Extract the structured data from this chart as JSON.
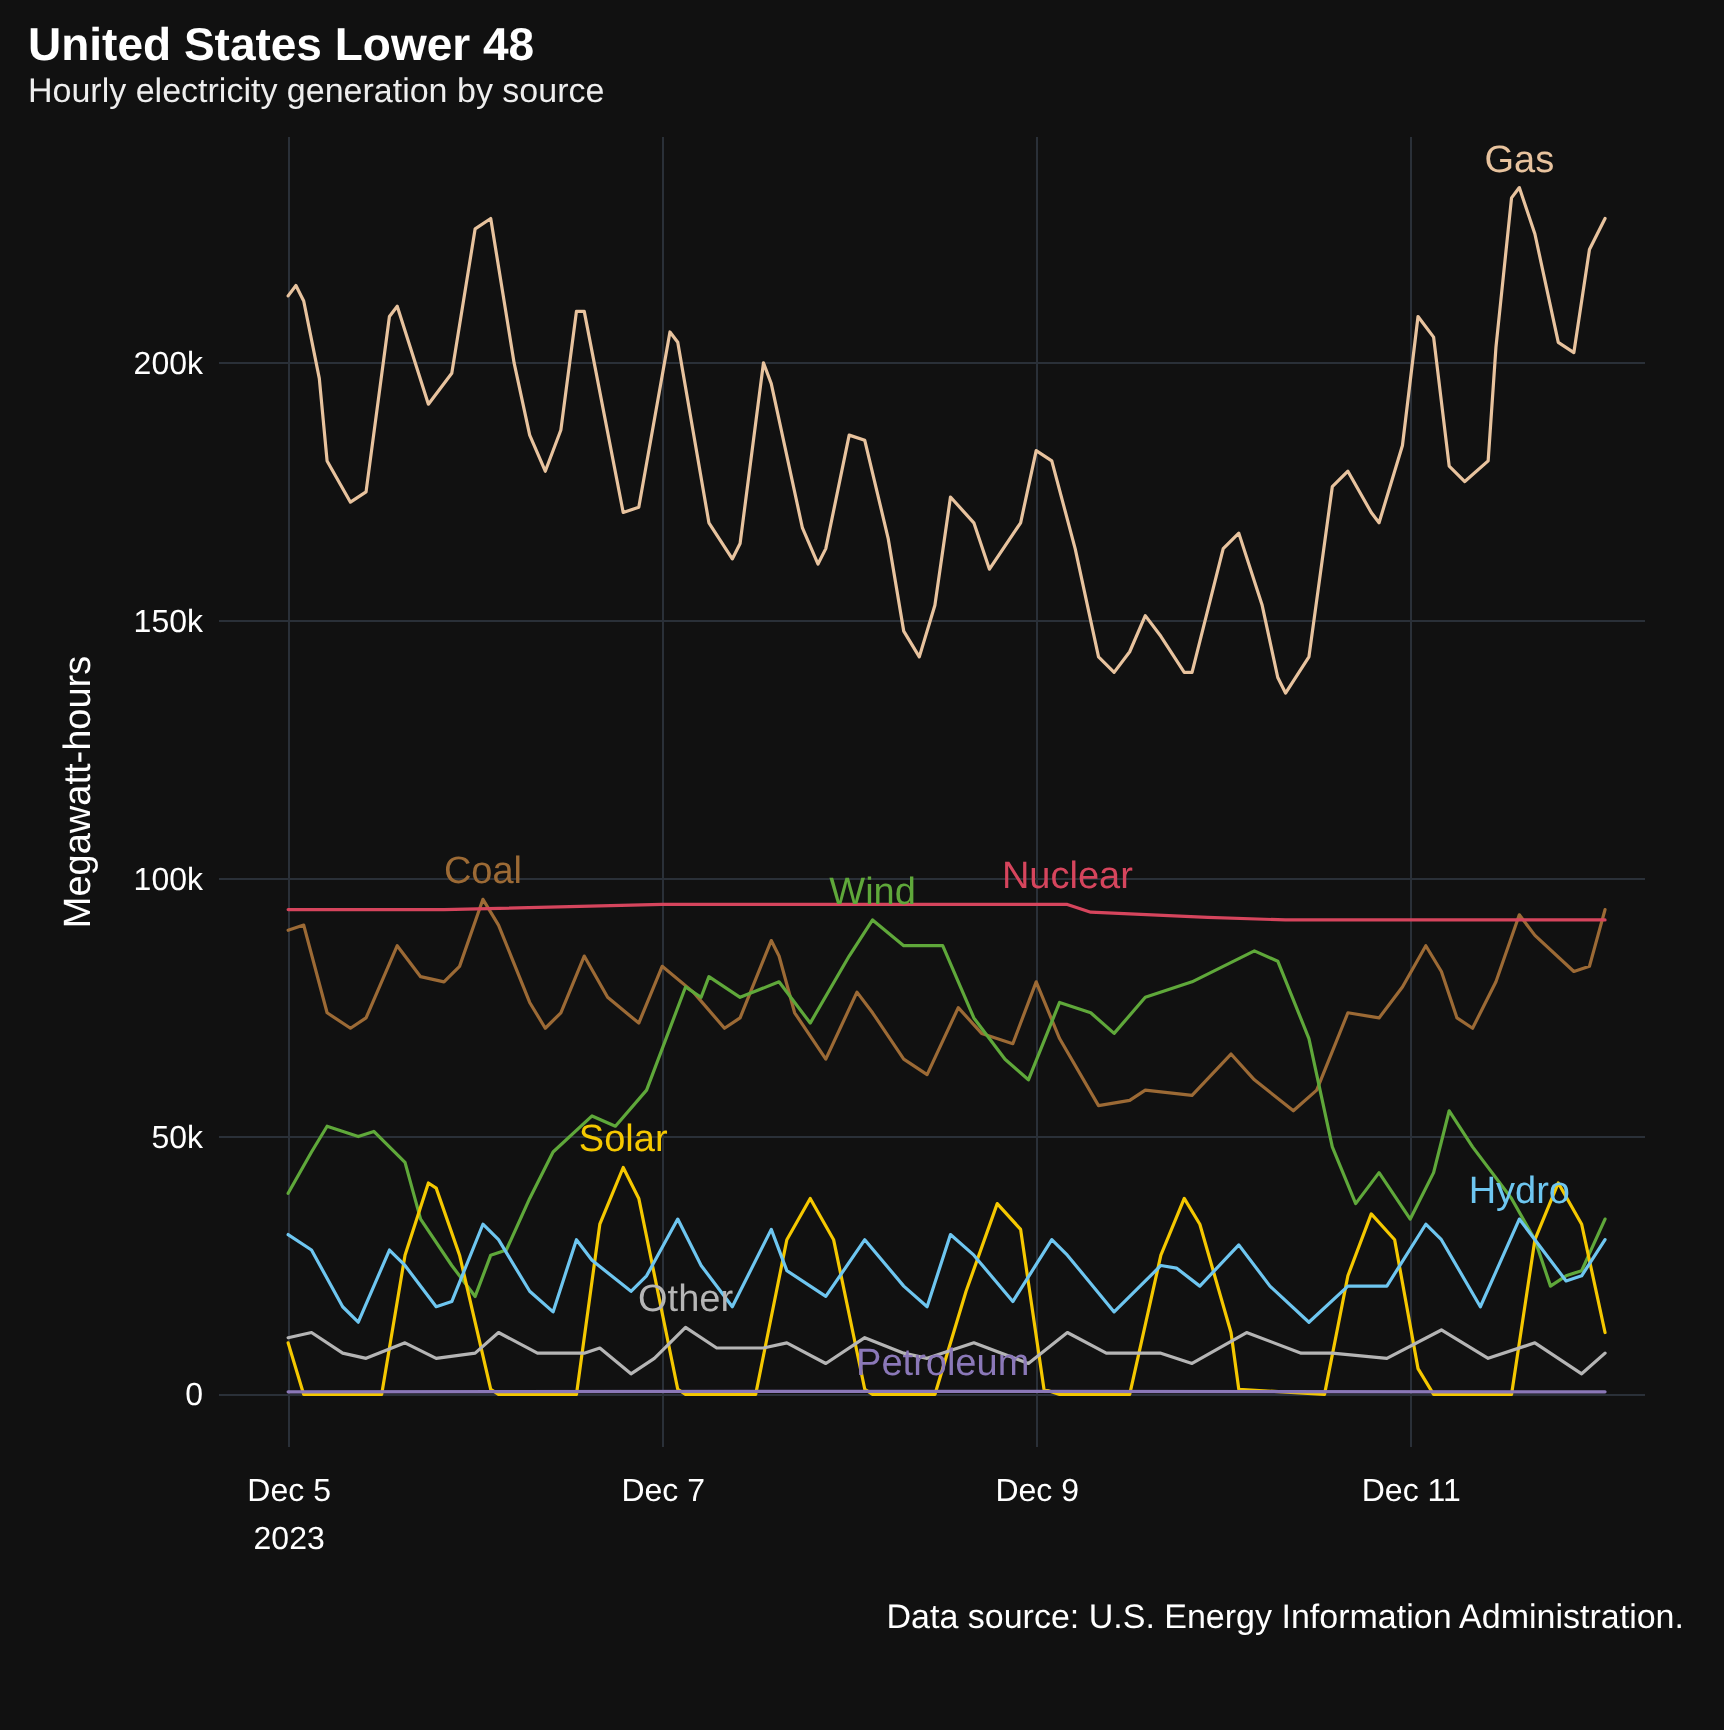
{
  "chart_data": {
    "type": "line",
    "title": "United States Lower 48",
    "subtitle": "Hourly electricity generation by source",
    "ylabel": "Megawatt-hours",
    "annotations": [
      "Data source: U.S. Energy Information Administration."
    ],
    "xlim": [
      "2023-12-04T15:00",
      "2023-12-12T06:00"
    ],
    "xticks": [
      {
        "value": "2023-12-05",
        "label": "Dec 5\n2023"
      },
      {
        "value": "2023-12-07",
        "label": "Dec 7"
      },
      {
        "value": "2023-12-09",
        "label": "Dec 9"
      },
      {
        "value": "2023-12-11",
        "label": "Dec 11"
      }
    ],
    "ylim": [
      -10000,
      244000
    ],
    "yticks": [
      0,
      {
        "value": 50000,
        "label": "50k"
      },
      {
        "value": 100000,
        "label": "100k"
      },
      {
        "value": 150000,
        "label": "150k"
      },
      {
        "value": 200000,
        "label": "200k"
      }
    ],
    "grid": true,
    "series": [
      {
        "name": "Gas",
        "color": "#e8c39e",
        "x": [
          "2023-12-05T00:00",
          "2023-12-05T01:00",
          "2023-12-05T02:00",
          "2023-12-05T04:00",
          "2023-12-05T05:00",
          "2023-12-05T08:00",
          "2023-12-05T10:00",
          "2023-12-05T13:00",
          "2023-12-05T14:00",
          "2023-12-05T18:00",
          "2023-12-05T21:00",
          "2023-12-06T00:00",
          "2023-12-06T02:00",
          "2023-12-06T05:00",
          "2023-12-06T07:00",
          "2023-12-06T09:00",
          "2023-12-06T11:00",
          "2023-12-06T13:00",
          "2023-12-06T14:00",
          "2023-12-06T19:00",
          "2023-12-06T21:00",
          "2023-12-07T01:00",
          "2023-12-07T02:00",
          "2023-12-07T06:00",
          "2023-12-07T09:00",
          "2023-12-07T10:00",
          "2023-12-07T13:00",
          "2023-12-07T14:00",
          "2023-12-07T18:00",
          "2023-12-07T20:00",
          "2023-12-07T21:00",
          "2023-12-08T00:00",
          "2023-12-08T02:00",
          "2023-12-08T05:00",
          "2023-12-08T07:00",
          "2023-12-08T09:00",
          "2023-12-08T11:00",
          "2023-12-08T13:00",
          "2023-12-08T16:00",
          "2023-12-08T18:00",
          "2023-12-08T22:00",
          "2023-12-09T00:00",
          "2023-12-09T02:00",
          "2023-12-09T05:00",
          "2023-12-09T08:00",
          "2023-12-09T10:00",
          "2023-12-09T12:00",
          "2023-12-09T14:00",
          "2023-12-09T16:00",
          "2023-12-09T19:00",
          "2023-12-09T20:00",
          "2023-12-10T00:00",
          "2023-12-10T02:00",
          "2023-12-10T05:00",
          "2023-12-10T07:00",
          "2023-12-10T08:00",
          "2023-12-10T11:00",
          "2023-12-10T14:00",
          "2023-12-10T16:00",
          "2023-12-10T19:00",
          "2023-12-10T20:00",
          "2023-12-10T23:00",
          "2023-12-11T01:00",
          "2023-12-11T03:00",
          "2023-12-11T05:00",
          "2023-12-11T07:00",
          "2023-12-11T10:00",
          "2023-12-11T11:00",
          "2023-12-11T13:00",
          "2023-12-11T14:00",
          "2023-12-11T16:00",
          "2023-12-11T19:00",
          "2023-12-11T21:00",
          "2023-12-11T23:00",
          "2023-12-12T01:00"
        ],
        "values": [
          213000,
          215000,
          212000,
          197000,
          181000,
          173000,
          175000,
          209000,
          211000,
          192000,
          198000,
          226000,
          228000,
          200000,
          186000,
          179000,
          187000,
          210000,
          210000,
          171000,
          172000,
          206000,
          204000,
          169000,
          162000,
          165000,
          200000,
          196000,
          168000,
          161000,
          164000,
          186000,
          185000,
          166000,
          148000,
          143000,
          153000,
          174000,
          169000,
          160000,
          169000,
          183000,
          181000,
          164000,
          143000,
          140000,
          144000,
          151000,
          147000,
          140000,
          140000,
          164000,
          167000,
          153000,
          139000,
          136000,
          143000,
          176000,
          179000,
          171000,
          169000,
          184000,
          209000,
          205000,
          180000,
          177000,
          181000,
          203000,
          232000,
          234000,
          225000,
          204000,
          202000,
          222000,
          228000
        ]
      },
      {
        "name": "Coal",
        "color": "#9c6a35",
        "x": [
          "2023-12-05T00:00",
          "2023-12-05T02:00",
          "2023-12-05T05:00",
          "2023-12-05T08:00",
          "2023-12-05T10:00",
          "2023-12-05T14:00",
          "2023-12-05T17:00",
          "2023-12-05T20:00",
          "2023-12-05T22:00",
          "2023-12-06T01:00",
          "2023-12-06T03:00",
          "2023-12-06T07:00",
          "2023-12-06T09:00",
          "2023-12-06T11:00",
          "2023-12-06T14:00",
          "2023-12-06T17:00",
          "2023-12-06T21:00",
          "2023-12-07T00:00",
          "2023-12-07T04:00",
          "2023-12-07T08:00",
          "2023-12-07T10:00",
          "2023-12-07T14:00",
          "2023-12-07T15:00",
          "2023-12-07T17:00",
          "2023-12-07T21:00",
          "2023-12-08T01:00",
          "2023-12-08T03:00",
          "2023-12-08T07:00",
          "2023-12-08T10:00",
          "2023-12-08T14:00",
          "2023-12-08T17:00",
          "2023-12-08T21:00",
          "2023-12-09T00:00",
          "2023-12-09T03:00",
          "2023-12-09T08:00",
          "2023-12-09T12:00",
          "2023-12-09T14:00",
          "2023-12-09T20:00",
          "2023-12-10T01:00",
          "2023-12-10T04:00",
          "2023-12-10T09:00",
          "2023-12-10T12:00",
          "2023-12-10T16:00",
          "2023-12-10T20:00",
          "2023-12-10T23:00",
          "2023-12-11T02:00",
          "2023-12-11T04:00",
          "2023-12-11T06:00",
          "2023-12-11T08:00",
          "2023-12-11T11:00",
          "2023-12-11T14:00",
          "2023-12-11T16:00",
          "2023-12-11T21:00",
          "2023-12-11T23:00",
          "2023-12-12T01:00"
        ],
        "values": [
          90000,
          91000,
          74000,
          71000,
          73000,
          87000,
          81000,
          80000,
          83000,
          96000,
          91000,
          76000,
          71000,
          74000,
          85000,
          77000,
          72000,
          83000,
          78000,
          71000,
          73000,
          88000,
          85000,
          74000,
          65000,
          78000,
          74000,
          65000,
          62000,
          75000,
          70000,
          68000,
          80000,
          69000,
          56000,
          57000,
          59000,
          58000,
          66000,
          61000,
          55000,
          59000,
          74000,
          73000,
          79000,
          87000,
          82000,
          73000,
          71000,
          80000,
          93000,
          89000,
          82000,
          83000,
          94000
        ]
      },
      {
        "name": "Nuclear",
        "color": "#d6455d",
        "x": [
          "2023-12-05T00:00",
          "2023-12-05T20:00",
          "2023-12-07T00:00",
          "2023-12-08T08:00",
          "2023-12-09T04:00",
          "2023-12-09T07:00",
          "2023-12-09T22:00",
          "2023-12-10T08:00",
          "2023-12-12T01:00"
        ],
        "values": [
          94000,
          94000,
          95000,
          95000,
          95000,
          93500,
          92500,
          92000,
          92000
        ]
      },
      {
        "name": "Wind",
        "color": "#5fa83a",
        "x": [
          "2023-12-05T00:00",
          "2023-12-05T03:00",
          "2023-12-05T05:00",
          "2023-12-05T09:00",
          "2023-12-05T11:00",
          "2023-12-05T15:00",
          "2023-12-05T17:00",
          "2023-12-05T21:00",
          "2023-12-06T00:00",
          "2023-12-06T02:00",
          "2023-12-06T04:00",
          "2023-12-06T07:00",
          "2023-12-06T10:00",
          "2023-12-06T15:00",
          "2023-12-06T18:00",
          "2023-12-06T22:00",
          "2023-12-07T03:00",
          "2023-12-07T05:00",
          "2023-12-07T06:00",
          "2023-12-07T10:00",
          "2023-12-07T15:00",
          "2023-12-07T19:00",
          "2023-12-08T00:00",
          "2023-12-08T03:00",
          "2023-12-08T07:00",
          "2023-12-08T12:00",
          "2023-12-08T16:00",
          "2023-12-08T20:00",
          "2023-12-08T23:00",
          "2023-12-09T03:00",
          "2023-12-09T07:00",
          "2023-12-09T10:00",
          "2023-12-09T14:00",
          "2023-12-09T20:00",
          "2023-12-10T00:00",
          "2023-12-10T04:00",
          "2023-12-10T07:00",
          "2023-12-10T11:00",
          "2023-12-10T14:00",
          "2023-12-10T17:00",
          "2023-12-10T20:00",
          "2023-12-11T00:00",
          "2023-12-11T03:00",
          "2023-12-11T05:00",
          "2023-12-11T08:00",
          "2023-12-11T13:00",
          "2023-12-11T16:00",
          "2023-12-11T18:00",
          "2023-12-11T20:00",
          "2023-12-11T22:00",
          "2023-12-12T01:00"
        ],
        "values": [
          39000,
          47000,
          52000,
          50000,
          51000,
          45000,
          34000,
          25000,
          19000,
          27000,
          28000,
          38000,
          47000,
          54000,
          52000,
          59000,
          79000,
          77000,
          81000,
          77000,
          80000,
          72000,
          85000,
          92000,
          87000,
          87000,
          73000,
          65000,
          61000,
          76000,
          74000,
          70000,
          77000,
          80000,
          83000,
          86000,
          84000,
          69000,
          48000,
          37000,
          43000,
          34000,
          43000,
          55000,
          48000,
          38000,
          30000,
          21000,
          23000,
          24000,
          34000
        ]
      },
      {
        "name": "Solar",
        "color": "#f5c800",
        "x": [
          "2023-12-05T00:00",
          "2023-12-05T02:00",
          "2023-12-05T12:00",
          "2023-12-05T15:00",
          "2023-12-05T18:00",
          "2023-12-05T19:00",
          "2023-12-05T22:00",
          "2023-12-06T02:00",
          "2023-12-06T03:00",
          "2023-12-06T13:00",
          "2023-12-06T16:00",
          "2023-12-06T19:00",
          "2023-12-06T21:00",
          "2023-12-07T02:00",
          "2023-12-07T03:00",
          "2023-12-07T12:00",
          "2023-12-07T16:00",
          "2023-12-07T19:00",
          "2023-12-07T22:00",
          "2023-12-08T02:00",
          "2023-12-08T03:00",
          "2023-12-08T11:00",
          "2023-12-08T15:00",
          "2023-12-08T19:00",
          "2023-12-08T22:00",
          "2023-12-09T01:00",
          "2023-12-09T03:00",
          "2023-12-09T12:00",
          "2023-12-09T16:00",
          "2023-12-09T19:00",
          "2023-12-09T21:00",
          "2023-12-10T01:00",
          "2023-12-10T02:00",
          "2023-12-10T13:00",
          "2023-12-10T16:00",
          "2023-12-10T19:00",
          "2023-12-10T22:00",
          "2023-12-11T01:00",
          "2023-12-11T03:00",
          "2023-12-11T13:00",
          "2023-12-11T16:00",
          "2023-12-11T19:00",
          "2023-12-11T22:00",
          "2023-12-12T01:00"
        ],
        "values": [
          10000,
          0,
          0,
          27000,
          41000,
          40000,
          27000,
          1000,
          0,
          0,
          33000,
          44000,
          38000,
          1000,
          0,
          0,
          30000,
          38000,
          30000,
          1000,
          0,
          0,
          20000,
          37000,
          32000,
          1000,
          0,
          0,
          27000,
          38000,
          33000,
          12000,
          1000,
          0,
          23000,
          35000,
          30000,
          5000,
          0,
          0,
          30000,
          41000,
          33000,
          12000
        ]
      },
      {
        "name": "Hydro",
        "color": "#6ec6f0",
        "x": [
          "2023-12-05T00:00",
          "2023-12-05T03:00",
          "2023-12-05T07:00",
          "2023-12-05T09:00",
          "2023-12-05T13:00",
          "2023-12-05T15:00",
          "2023-12-05T19:00",
          "2023-12-05T21:00",
          "2023-12-06T01:00",
          "2023-12-06T03:00",
          "2023-12-06T07:00",
          "2023-12-06T10:00",
          "2023-12-06T13:00",
          "2023-12-06T15:00",
          "2023-12-06T20:00",
          "2023-12-06T22:00",
          "2023-12-07T02:00",
          "2023-12-07T05:00",
          "2023-12-07T09:00",
          "2023-12-07T14:00",
          "2023-12-07T16:00",
          "2023-12-07T21:00",
          "2023-12-08T02:00",
          "2023-12-08T07:00",
          "2023-12-08T10:00",
          "2023-12-08T13:00",
          "2023-12-08T16:00",
          "2023-12-08T21:00",
          "2023-12-09T02:00",
          "2023-12-09T04:00",
          "2023-12-09T10:00",
          "2023-12-09T16:00",
          "2023-12-09T18:00",
          "2023-12-09T21:00",
          "2023-12-10T02:00",
          "2023-12-10T06:00",
          "2023-12-10T11:00",
          "2023-12-10T16:00",
          "2023-12-10T21:00",
          "2023-12-11T02:00",
          "2023-12-11T04:00",
          "2023-12-11T09:00",
          "2023-12-11T14:00",
          "2023-12-11T16:00",
          "2023-12-11T20:00",
          "2023-12-11T22:00",
          "2023-12-12T01:00"
        ],
        "values": [
          31000,
          28000,
          17000,
          14000,
          28000,
          25000,
          17000,
          18000,
          33000,
          30000,
          20000,
          16000,
          30000,
          26000,
          20000,
          23000,
          34000,
          25000,
          17000,
          32000,
          24000,
          19000,
          30000,
          21000,
          17000,
          31000,
          27000,
          18000,
          30000,
          27000,
          16000,
          25000,
          24500,
          21000,
          29000,
          21000,
          14000,
          21000,
          21000,
          33000,
          30000,
          17000,
          34000,
          30000,
          22000,
          23000,
          30000
        ]
      },
      {
        "name": "Other",
        "color": "#b5b5b5",
        "x": [
          "2023-12-05T00:00",
          "2023-12-05T03:00",
          "2023-12-05T07:00",
          "2023-12-05T10:00",
          "2023-12-05T15:00",
          "2023-12-05T19:00",
          "2023-12-06T00:00",
          "2023-12-06T03:00",
          "2023-12-06T08:00",
          "2023-12-06T14:00",
          "2023-12-06T16:00",
          "2023-12-06T20:00",
          "2023-12-06T23:00",
          "2023-12-07T03:00",
          "2023-12-07T07:00",
          "2023-12-07T13:00",
          "2023-12-07T16:00",
          "2023-12-07T21:00",
          "2023-12-08T02:00",
          "2023-12-08T07:00",
          "2023-12-08T10:00",
          "2023-12-08T16:00",
          "2023-12-08T23:00",
          "2023-12-09T04:00",
          "2023-12-09T09:00",
          "2023-12-09T16:00",
          "2023-12-09T20:00",
          "2023-12-10T03:00",
          "2023-12-10T10:00",
          "2023-12-10T14:00",
          "2023-12-10T21:00",
          "2023-12-11T04:00",
          "2023-12-11T10:00",
          "2023-12-11T16:00",
          "2023-12-11T22:00",
          "2023-12-12T01:00"
        ],
        "values": [
          11000,
          12000,
          8000,
          7000,
          10000,
          7000,
          8000,
          12000,
          8000,
          8000,
          9000,
          4000,
          7000,
          13000,
          9000,
          9000,
          10000,
          6000,
          11000,
          8000,
          7000,
          10000,
          6000,
          12000,
          8000,
          8000,
          6000,
          12000,
          8000,
          8000,
          7000,
          12500,
          7000,
          10000,
          4000,
          8000
        ]
      },
      {
        "name": "Petroleum",
        "color": "#8b78b8",
        "x": [
          "2023-12-05T00:00",
          "2023-12-08T12:00",
          "2023-12-12T01:00"
        ],
        "values": [
          500,
          600,
          500
        ]
      }
    ]
  }
}
